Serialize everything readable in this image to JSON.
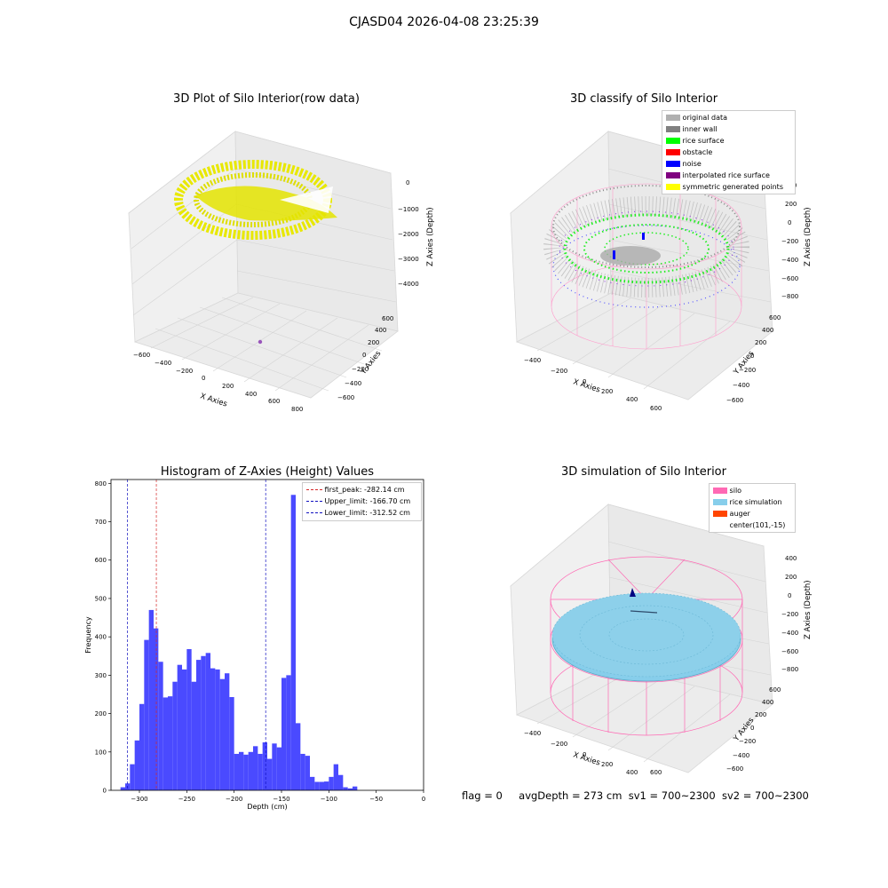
{
  "figure": {
    "suptitle": "CJASD04 2026-04-08 23:25:39",
    "footer": {
      "flag": "flag = 0",
      "avg_depth": "avgDepth = 273 cm",
      "sv1": "sv1 = 700~2300",
      "sv2": "sv2 = 700~2300"
    }
  },
  "colors": {
    "raw_points": "#e8e800",
    "original": "#b0b0b0",
    "inner_wall": "#808080",
    "rice_surface": "#00ff00",
    "obstacle": "#ff0000",
    "noise": "#0000ff",
    "interpolated": "#800080",
    "symmetric": "#ffff00",
    "silo": "#ff69b4",
    "rice_sim": "#87ceeb",
    "auger": "#ff4500",
    "hist_bar": "#4a4aff",
    "first_peak_line": "#d62728",
    "limit_line": "#1010c0"
  },
  "chart_data": [
    {
      "type": "scatter3d",
      "title": "3D Plot of Silo Interior(row data)",
      "xlabel": "X Axies",
      "ylabel": "Y Axies",
      "zlabel": "Z Axies (Depth)",
      "xticks": [
        "−600",
        "−400",
        "−200",
        "0",
        "200",
        "400",
        "600",
        "800"
      ],
      "yticks": [
        "−600",
        "−400",
        "−200",
        "0",
        "200",
        "400",
        "600"
      ],
      "zticks": [
        "0",
        "−1000",
        "−2000",
        "−3000",
        "−4000"
      ]
    },
    {
      "type": "scatter3d",
      "title": "3D classify of Silo Interior",
      "xlabel": "X Axies",
      "ylabel": "Y Axies",
      "zlabel": "Z Axies (Depth)",
      "xticks": [
        "−400",
        "−200",
        "0",
        "200",
        "400",
        "600"
      ],
      "yticks": [
        "−600",
        "−400",
        "−200",
        "0",
        "200",
        "400",
        "600"
      ],
      "zticks": [
        "400",
        "200",
        "0",
        "−200",
        "−400",
        "−600",
        "−800"
      ],
      "legend": [
        "original data",
        "inner wall",
        "rice surface",
        "obstacle",
        "noise",
        "interpolated rice surface",
        "symmetric generated points"
      ]
    },
    {
      "type": "bar",
      "title": "Histogram of Z-Axies (Height) Values",
      "xlabel": "Depth (cm)",
      "ylabel": "Frequency",
      "xlim": [
        -330,
        0
      ],
      "ylim": [
        0,
        810
      ],
      "xticks": [
        -300,
        -250,
        -200,
        -150,
        -100,
        -50,
        0
      ],
      "yticks": [
        0,
        100,
        200,
        300,
        400,
        500,
        600,
        700,
        800
      ],
      "bin_start": -325,
      "bin_width": 5,
      "values": [
        0,
        8,
        18,
        68,
        130,
        225,
        392,
        470,
        422,
        335,
        242,
        245,
        283,
        327,
        315,
        368,
        283,
        340,
        350,
        358,
        318,
        315,
        290,
        305,
        243,
        95,
        100,
        93,
        100,
        115,
        95,
        125,
        82,
        122,
        112,
        293,
        300,
        770,
        175,
        95,
        90,
        35,
        22,
        22,
        23,
        35,
        68,
        40,
        8,
        5,
        10,
        0
      ],
      "vlines": [
        {
          "label": "first_peak: -282.14 cm",
          "x": -282.14
        },
        {
          "label": "Upper_limit: -166.70 cm",
          "x": -166.7
        },
        {
          "label": "Lower_limit: -312.52 cm",
          "x": -312.52
        }
      ]
    },
    {
      "type": "surface3d",
      "title": "3D simulation of Silo Interior",
      "xlabel": "X Axies",
      "ylabel": "Y Axies",
      "zlabel": "Z Axies (Depth)",
      "xticks": [
        "−400",
        "−200",
        "0",
        "200",
        "400",
        "600"
      ],
      "yticks": [
        "−600",
        "−400",
        "−200",
        "0",
        "200",
        "400",
        "600"
      ],
      "zticks": [
        "400",
        "200",
        "0",
        "−200",
        "−400",
        "−600",
        "−800"
      ],
      "legend": [
        "silo",
        "rice simulation",
        "auger",
        "center(101,-15)"
      ]
    }
  ]
}
